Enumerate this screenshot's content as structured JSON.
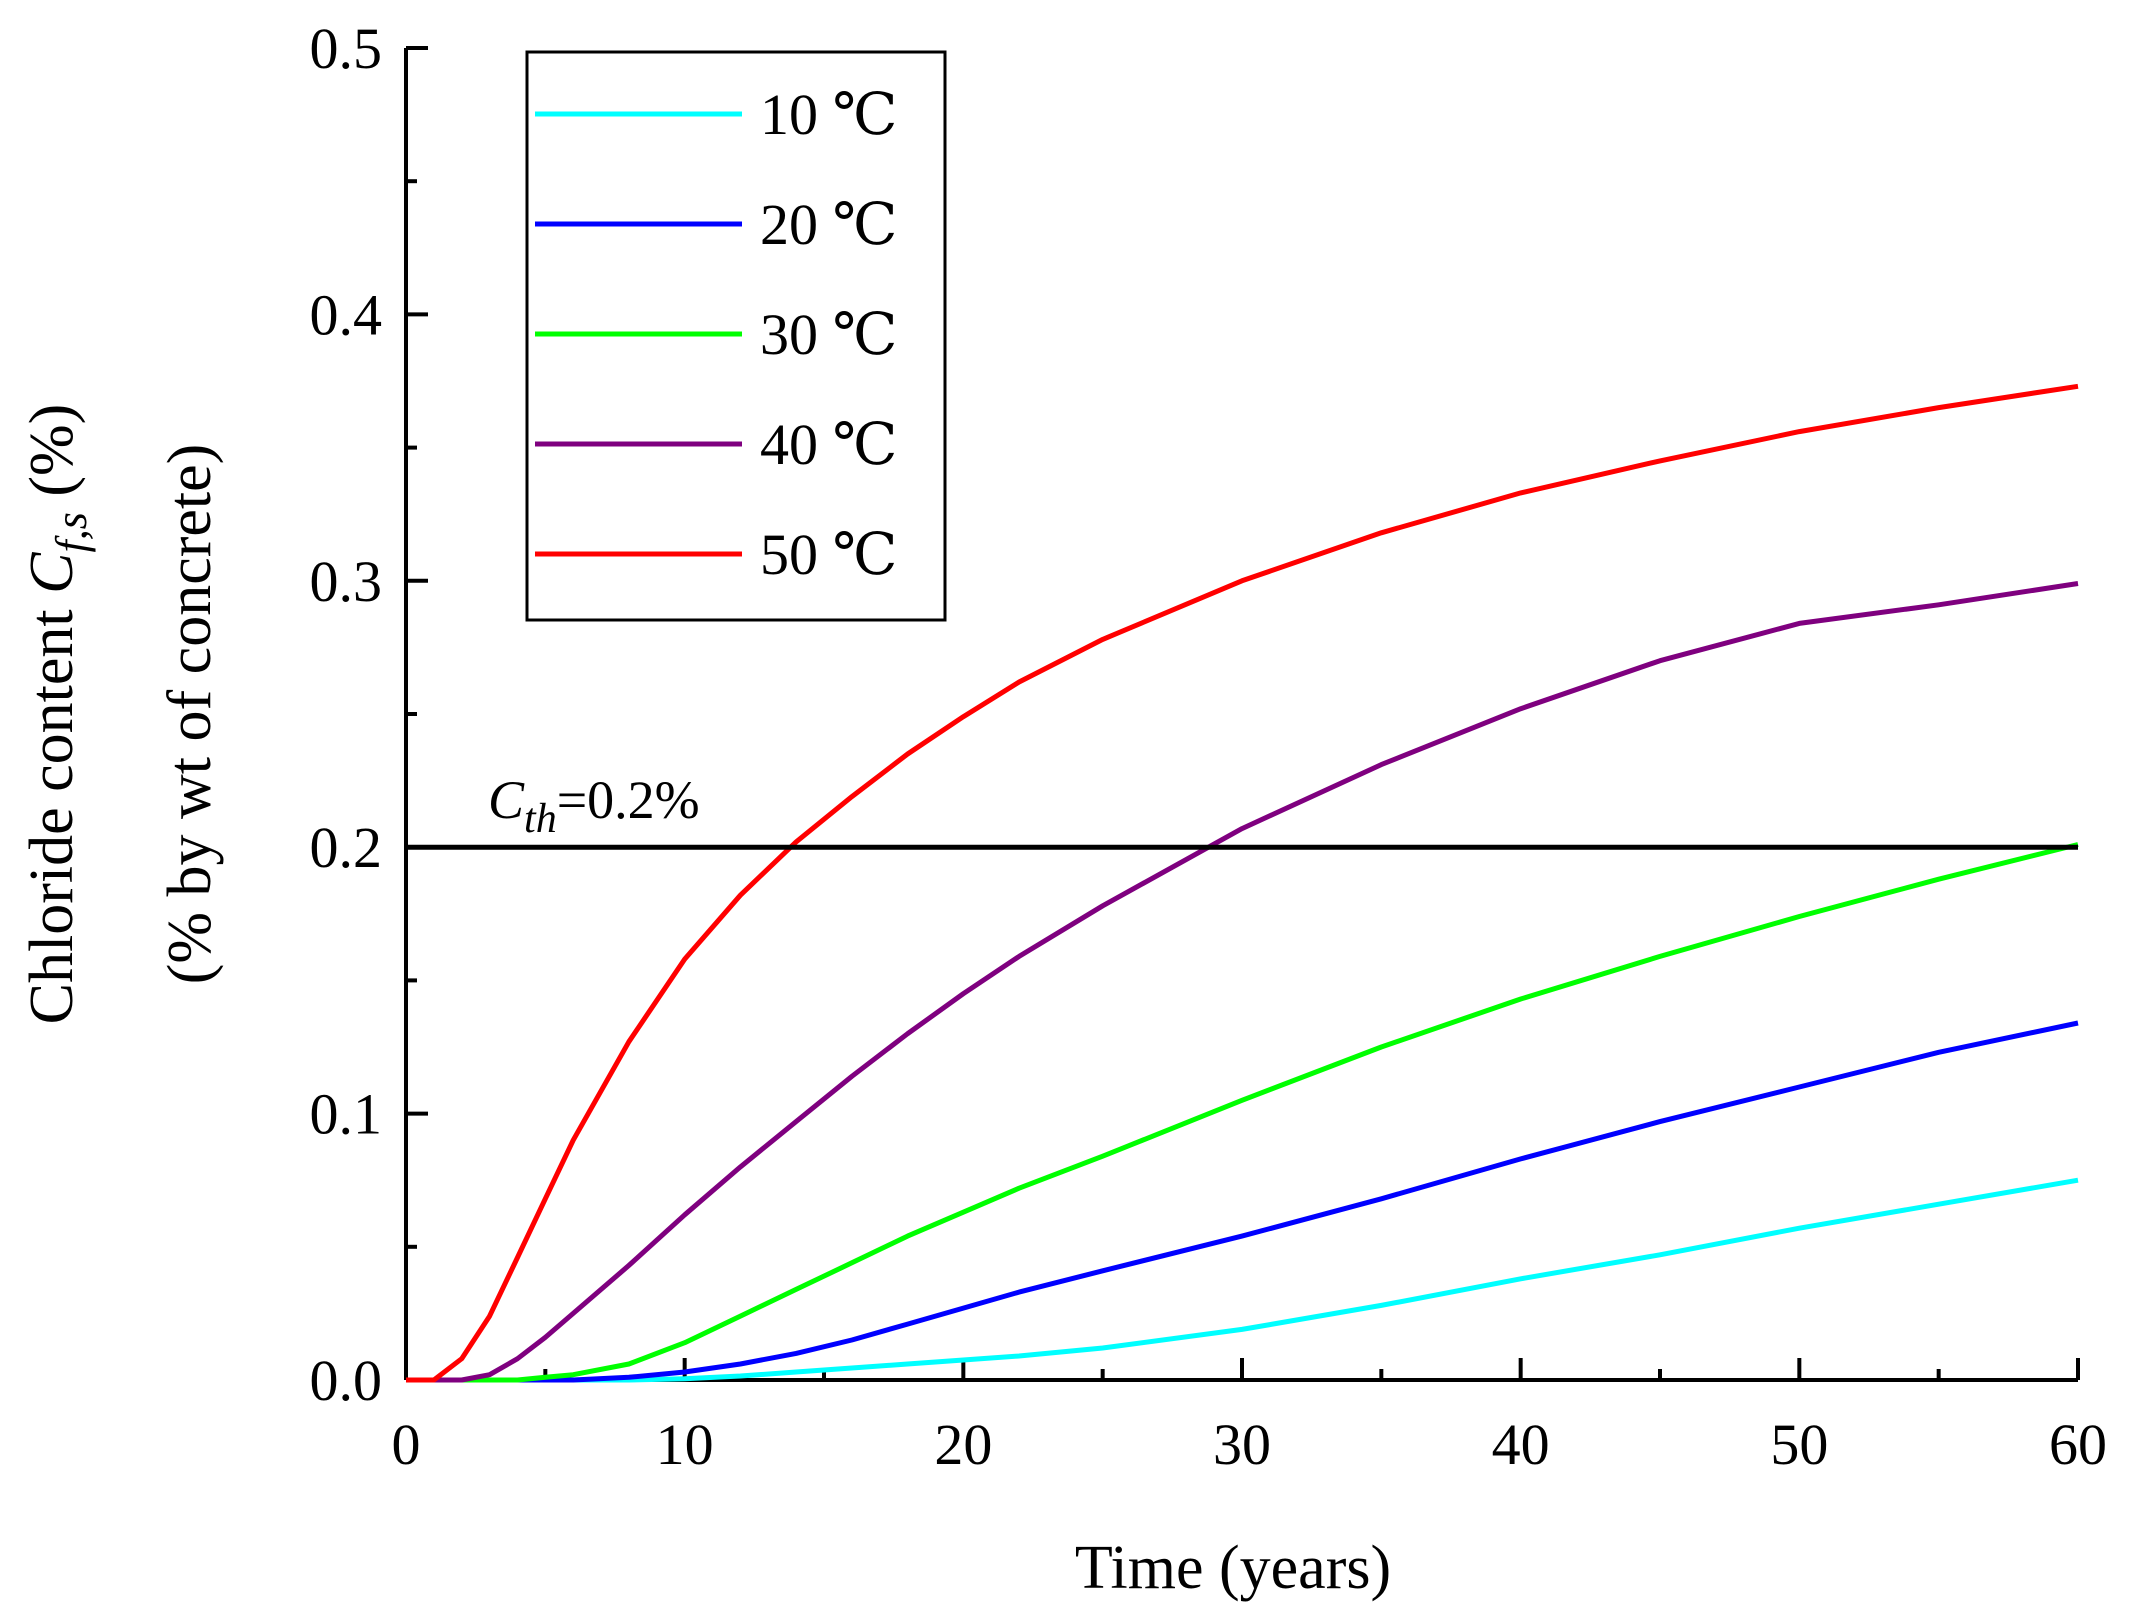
{
  "chart_data": {
    "type": "line",
    "title": "",
    "xlabel": "Time (years)",
    "ylabel_line1": "Chloride content ",
    "ylabel_symbol": "C",
    "ylabel_subscript": "f,s",
    "ylabel_suffix": " (%)",
    "ylabel_line2": "(% by wt of concrete)",
    "xlim": [
      0,
      60
    ],
    "ylim": [
      0,
      0.5
    ],
    "xticks": [
      0,
      10,
      20,
      30,
      40,
      50,
      60
    ],
    "xtick_labels": [
      "0",
      "10",
      "20",
      "30",
      "40",
      "50",
      "60"
    ],
    "yticks": [
      0.0,
      0.1,
      0.2,
      0.3,
      0.4,
      0.5
    ],
    "ytick_labels": [
      "0.0",
      "0.1",
      "0.2",
      "0.3",
      "0.4",
      "0.5"
    ],
    "legend_position": "top-left",
    "threshold": {
      "value": 0.2,
      "symbol": "C",
      "subscript": "th",
      "label_suffix": "=0.2%",
      "color": "#000000"
    },
    "x": [
      0,
      1,
      2,
      3,
      4,
      5,
      6,
      8,
      10,
      12,
      14,
      16,
      18,
      20,
      22,
      25,
      30,
      35,
      40,
      45,
      50,
      55,
      60
    ],
    "series": [
      {
        "name": "10 ℃",
        "color": "#00FFFF",
        "values": [
          0,
          0,
          0,
          0,
          0,
          0,
          0,
          0,
          0.0005,
          0.0015,
          0.003,
          0.0045,
          0.006,
          0.0075,
          0.009,
          0.012,
          0.019,
          0.028,
          0.038,
          0.047,
          0.057,
          0.066,
          0.075
        ]
      },
      {
        "name": "20 ℃",
        "color": "#0000FF",
        "values": [
          0,
          0,
          0,
          0,
          0,
          0,
          0,
          0.001,
          0.003,
          0.006,
          0.01,
          0.015,
          0.021,
          0.027,
          0.033,
          0.041,
          0.054,
          0.068,
          0.083,
          0.097,
          0.11,
          0.123,
          0.134
        ]
      },
      {
        "name": "30 ℃",
        "color": "#00FF00",
        "values": [
          0,
          0,
          0,
          0,
          0,
          0.001,
          0.002,
          0.006,
          0.014,
          0.024,
          0.034,
          0.044,
          0.054,
          0.063,
          0.072,
          0.084,
          0.105,
          0.125,
          0.143,
          0.159,
          0.174,
          0.188,
          0.201
        ]
      },
      {
        "name": "40 ℃",
        "color": "#7F007F",
        "values": [
          0,
          0,
          0,
          0.002,
          0.008,
          0.016,
          0.025,
          0.043,
          0.062,
          0.08,
          0.097,
          0.114,
          0.13,
          0.145,
          0.159,
          0.178,
          0.207,
          0.231,
          0.252,
          0.27,
          0.284,
          0.291,
          0.299
        ]
      },
      {
        "name": "50 ℃",
        "color": "#FF0000",
        "values": [
          0,
          0,
          0.008,
          0.024,
          0.046,
          0.068,
          0.09,
          0.127,
          0.158,
          0.182,
          0.202,
          0.219,
          0.235,
          0.249,
          0.262,
          0.278,
          0.3,
          0.318,
          0.333,
          0.345,
          0.356,
          0.365,
          0.373
        ]
      }
    ]
  }
}
